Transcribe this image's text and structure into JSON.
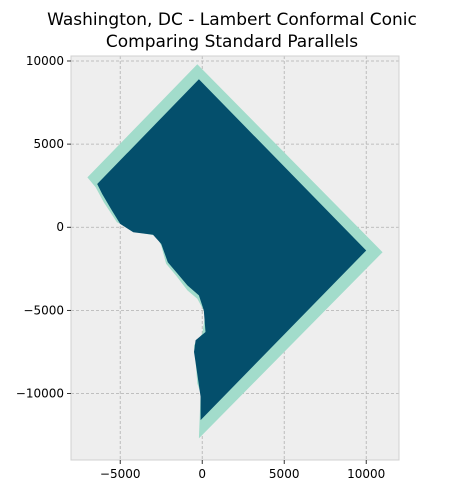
{
  "title": {
    "line1": "Washington, DC - Lambert Conformal Conic",
    "line2": "Comparing Standard Parallels"
  },
  "colors": {
    "background": "#eeeeee",
    "grid": "#b0b0b0",
    "outer_shape": "#a2dccb",
    "inner_shape": "#044f6c"
  },
  "chart_data": {
    "type": "map",
    "xlim": [
      -8000,
      12000
    ],
    "ylim": [
      -14000,
      10300
    ],
    "x_ticks": [
      {
        "value": -5000,
        "label": "−5000"
      },
      {
        "value": 0,
        "label": "0"
      },
      {
        "value": 5000,
        "label": "5000"
      },
      {
        "value": 10000,
        "label": "10000"
      }
    ],
    "y_ticks": [
      {
        "value": 10000,
        "label": "10000"
      },
      {
        "value": 5000,
        "label": "5000"
      },
      {
        "value": 0,
        "label": "0"
      },
      {
        "value": -5000,
        "label": "−5000"
      },
      {
        "value": -10000,
        "label": "−10000"
      }
    ],
    "grid": true,
    "series": [
      {
        "color": "#a2dccb",
        "points": [
          [
            -300,
            9800
          ],
          [
            -7000,
            3000
          ],
          [
            -6500,
            2400
          ],
          [
            -6000,
            1500
          ],
          [
            -5200,
            300
          ],
          [
            -4000,
            -300
          ],
          [
            -2800,
            -500
          ],
          [
            -2500,
            -1100
          ],
          [
            -2200,
            -2200
          ],
          [
            -1600,
            -2900
          ],
          [
            -900,
            -3800
          ],
          [
            -300,
            -4300
          ],
          [
            200,
            -5200
          ],
          [
            0,
            -6400
          ],
          [
            -500,
            -7100
          ],
          [
            -400,
            -8100
          ],
          [
            -300,
            -9400
          ],
          [
            -100,
            -10000
          ],
          [
            -200,
            -12700
          ],
          [
            11000,
            -1500
          ],
          [
            -300,
            9800
          ]
        ]
      },
      {
        "color": "#044f6c",
        "points": [
          [
            -200,
            8900
          ],
          [
            -6400,
            2600
          ],
          [
            -6100,
            2000
          ],
          [
            -5500,
            1000
          ],
          [
            -5000,
            200
          ],
          [
            -4200,
            -300
          ],
          [
            -3000,
            -450
          ],
          [
            -2500,
            -1000
          ],
          [
            -2100,
            -2100
          ],
          [
            -1500,
            -2800
          ],
          [
            -900,
            -3500
          ],
          [
            -200,
            -4100
          ],
          [
            100,
            -5000
          ],
          [
            200,
            -6300
          ],
          [
            -400,
            -6800
          ],
          [
            -500,
            -7500
          ],
          [
            -350,
            -8500
          ],
          [
            -200,
            -9500
          ],
          [
            -100,
            -10200
          ],
          [
            -100,
            -11600
          ],
          [
            10000,
            -1400
          ],
          [
            -200,
            8900
          ]
        ]
      }
    ]
  }
}
